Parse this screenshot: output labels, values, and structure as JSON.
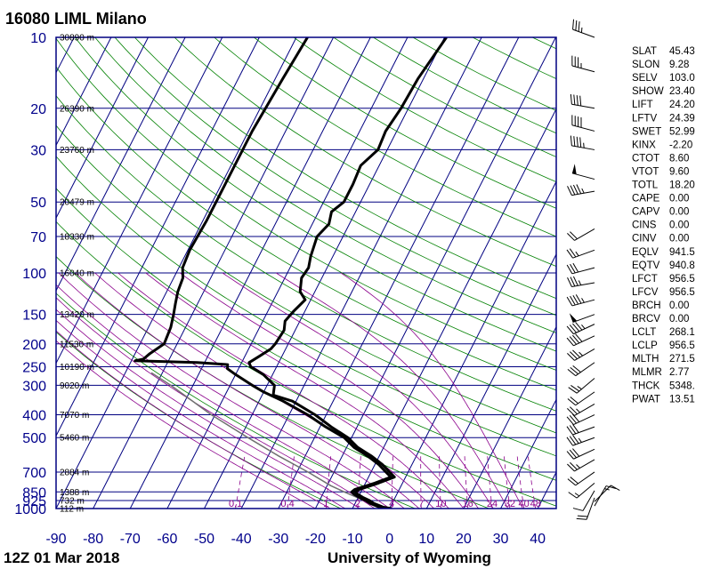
{
  "header": {
    "title": "16080 LIML Milano"
  },
  "footer": {
    "time": "12Z 01 Mar 2018",
    "source": "University of Wyoming"
  },
  "colors": {
    "frame": "#000080",
    "isotherm": "#000080",
    "dry_adiabat": "#008000",
    "moist_adiabat": "#8b008b",
    "mixing_ratio": "#8b008b",
    "profile": "#000000",
    "parcel": "#707070"
  },
  "chart_data": {
    "type": "skew-t log-p",
    "pressure_levels": [
      {
        "p": 10,
        "label": "10",
        "height": "30890 m"
      },
      {
        "p": 20,
        "label": "20",
        "height": "26390 m"
      },
      {
        "p": 30,
        "label": "30",
        "height": "23760 m"
      },
      {
        "p": 50,
        "label": "50",
        "height": "20479 m"
      },
      {
        "p": 70,
        "label": "70",
        "height": "18330 m"
      },
      {
        "p": 100,
        "label": "100",
        "height": "16040 m"
      },
      {
        "p": 150,
        "label": "150",
        "height": "13420 m"
      },
      {
        "p": 200,
        "label": "200",
        "height": "11530 m"
      },
      {
        "p": 250,
        "label": "250",
        "height": "10190 m"
      },
      {
        "p": 300,
        "label": "300",
        "height": "9020 m"
      },
      {
        "p": 400,
        "label": "400",
        "height": "7070 m"
      },
      {
        "p": 500,
        "label": "500",
        "height": "5460 m"
      },
      {
        "p": 700,
        "label": "700",
        "height": "2884 m"
      },
      {
        "p": 850,
        "label": "850",
        "height": "1388 m"
      },
      {
        "p": 925,
        "label": "925",
        "height": "732 m"
      },
      {
        "p": 1000,
        "label": "1000",
        "height": "112 m"
      }
    ],
    "temperature_ticks": [
      -90,
      -80,
      -70,
      -60,
      -50,
      -40,
      -30,
      -20,
      -10,
      0,
      10,
      20,
      30,
      40
    ],
    "x_range": [
      -90,
      45
    ],
    "p_range": [
      10,
      1000
    ],
    "mixing_ratio_labels": [
      "0.1",
      "0.4",
      "1",
      "2",
      "4",
      "7",
      "10",
      "16",
      "24",
      "32",
      "40",
      "48"
    ],
    "mixing_ratio_values": [
      0.1,
      0.4,
      1,
      2,
      4,
      7,
      10,
      16,
      24,
      32,
      40,
      48
    ],
    "dry_adiabats_theta_k": [
      260,
      280,
      300,
      320,
      340,
      360,
      380,
      400,
      420,
      440,
      460,
      480,
      500,
      520,
      560,
      600,
      640,
      680,
      720,
      760,
      800,
      860,
      920,
      980,
      1040,
      1100,
      1160
    ],
    "moist_adiabats_c": [
      -20,
      -16,
      -12,
      -8,
      -4,
      0,
      4,
      8,
      12,
      16,
      20,
      24,
      28,
      32,
      36
    ],
    "temperature_profile": [
      {
        "p": 1000,
        "t": 0.5
      },
      {
        "p": 985,
        "t": -2.0
      },
      {
        "p": 950,
        "t": -5.0
      },
      {
        "p": 925,
        "t": -6.5
      },
      {
        "p": 900,
        "t": -8.5
      },
      {
        "p": 870,
        "t": -10.5
      },
      {
        "p": 850,
        "t": -11.5
      },
      {
        "p": 830,
        "t": -10.8
      },
      {
        "p": 780,
        "t": -6.5
      },
      {
        "p": 735,
        "t": -3.0
      },
      {
        "p": 700,
        "t": -5.0
      },
      {
        "p": 650,
        "t": -8.0
      },
      {
        "p": 600,
        "t": -12.0
      },
      {
        "p": 550,
        "t": -17.0
      },
      {
        "p": 500,
        "t": -21.0
      },
      {
        "p": 450,
        "t": -27.0
      },
      {
        "p": 400,
        "t": -33.0
      },
      {
        "p": 350,
        "t": -41.0
      },
      {
        "p": 330,
        "t": -47.0
      },
      {
        "p": 300,
        "t": -48.0
      },
      {
        "p": 270,
        "t": -52.5
      },
      {
        "p": 250,
        "t": -57.0
      },
      {
        "p": 240,
        "t": -58.0
      },
      {
        "p": 225,
        "t": -56.0
      },
      {
        "p": 210,
        "t": -54.0
      },
      {
        "p": 200,
        "t": -53.5
      },
      {
        "p": 175,
        "t": -53.0
      },
      {
        "p": 160,
        "t": -54.0
      },
      {
        "p": 145,
        "t": -53.0
      },
      {
        "p": 130,
        "t": -51.5
      },
      {
        "p": 120,
        "t": -54.0
      },
      {
        "p": 105,
        "t": -55.5
      },
      {
        "p": 95,
        "t": -55.0
      },
      {
        "p": 85,
        "t": -56.0
      },
      {
        "p": 70,
        "t": -57.0
      },
      {
        "p": 62,
        "t": -55.5
      },
      {
        "p": 55,
        "t": -56.5
      },
      {
        "p": 50,
        "t": -54.5
      },
      {
        "p": 42,
        "t": -54.5
      },
      {
        "p": 35,
        "t": -55.0
      },
      {
        "p": 30,
        "t": -52.5
      },
      {
        "p": 25,
        "t": -53.0
      },
      {
        "p": 20,
        "t": -52.0
      },
      {
        "p": 15,
        "t": -51.5
      },
      {
        "p": 10,
        "t": -49.5
      }
    ],
    "dewpoint_profile": [
      {
        "p": 1000,
        "t": -0.5
      },
      {
        "p": 985,
        "t": -3.0
      },
      {
        "p": 950,
        "t": -6.0
      },
      {
        "p": 925,
        "t": -7.5
      },
      {
        "p": 900,
        "t": -9.5
      },
      {
        "p": 870,
        "t": -11.5
      },
      {
        "p": 850,
        "t": -12.5
      },
      {
        "p": 830,
        "t": -12.0
      },
      {
        "p": 780,
        "t": -7.5
      },
      {
        "p": 735,
        "t": -4.0
      },
      {
        "p": 700,
        "t": -6.0
      },
      {
        "p": 650,
        "t": -9.0
      },
      {
        "p": 600,
        "t": -13.0
      },
      {
        "p": 550,
        "t": -18.0
      },
      {
        "p": 500,
        "t": -22.0
      },
      {
        "p": 450,
        "t": -28.5
      },
      {
        "p": 400,
        "t": -35.0
      },
      {
        "p": 350,
        "t": -43.5
      },
      {
        "p": 320,
        "t": -50.0
      },
      {
        "p": 300,
        "t": -54.0
      },
      {
        "p": 270,
        "t": -60.0
      },
      {
        "p": 255,
        "t": -63.0
      },
      {
        "p": 245,
        "t": -63.5
      },
      {
        "p": 240,
        "t": -72.0
      },
      {
        "p": 236,
        "t": -89.0
      },
      {
        "p": 232,
        "t": -87.0
      },
      {
        "p": 220,
        "t": -86.0
      },
      {
        "p": 200,
        "t": -83.5
      },
      {
        "p": 170,
        "t": -84.0
      },
      {
        "p": 150,
        "t": -85.0
      },
      {
        "p": 135,
        "t": -86.0
      },
      {
        "p": 120,
        "t": -87.0
      },
      {
        "p": 105,
        "t": -87.5
      },
      {
        "p": 95,
        "t": -89.0
      },
      {
        "p": 80,
        "t": -89.5
      },
      {
        "p": 60,
        "t": -89.0
      },
      {
        "p": 40,
        "t": -89.0
      },
      {
        "p": 25,
        "t": -89.0
      },
      {
        "p": 15,
        "t": -88.0
      },
      {
        "p": 10,
        "t": -87.0
      }
    ],
    "parcel_profile": [
      {
        "p": 1000,
        "t": -1.0
      },
      {
        "p": 950,
        "t": -5.5
      },
      {
        "p": 900,
        "t": -10.0
      },
      {
        "p": 850,
        "t": -14.5
      },
      {
        "p": 800,
        "t": -19.0
      },
      {
        "p": 700,
        "t": -27.0
      },
      {
        "p": 600,
        "t": -37.0
      },
      {
        "p": 500,
        "t": -48.0
      },
      {
        "p": 400,
        "t": -61.0
      },
      {
        "p": 300,
        "t": -76.0
      },
      {
        "p": 265,
        "t": -83.0
      }
    ],
    "wind_barbs": [
      {
        "p": 10,
        "dir": 290,
        "kt": 35
      },
      {
        "p": 14,
        "dir": 285,
        "kt": 35
      },
      {
        "p": 20,
        "dir": 280,
        "kt": 40
      },
      {
        "p": 25,
        "dir": 285,
        "kt": 40
      },
      {
        "p": 30,
        "dir": 280,
        "kt": 45
      },
      {
        "p": 40,
        "dir": 285,
        "kt": 50
      },
      {
        "p": 45,
        "dir": 260,
        "kt": 45
      },
      {
        "p": 65,
        "dir": 240,
        "kt": 20
      },
      {
        "p": 80,
        "dir": 250,
        "kt": 25
      },
      {
        "p": 95,
        "dir": 255,
        "kt": 30
      },
      {
        "p": 110,
        "dir": 260,
        "kt": 35
      },
      {
        "p": 130,
        "dir": 255,
        "kt": 45
      },
      {
        "p": 150,
        "dir": 250,
        "kt": 50
      },
      {
        "p": 165,
        "dir": 245,
        "kt": 45
      },
      {
        "p": 185,
        "dir": 245,
        "kt": 40
      },
      {
        "p": 210,
        "dir": 240,
        "kt": 35
      },
      {
        "p": 240,
        "dir": 235,
        "kt": 30
      },
      {
        "p": 280,
        "dir": 230,
        "kt": 25
      },
      {
        "p": 320,
        "dir": 235,
        "kt": 20
      },
      {
        "p": 360,
        "dir": 240,
        "kt": 25
      },
      {
        "p": 400,
        "dir": 245,
        "kt": 30
      },
      {
        "p": 450,
        "dir": 250,
        "kt": 30
      },
      {
        "p": 500,
        "dir": 250,
        "kt": 35
      },
      {
        "p": 560,
        "dir": 245,
        "kt": 30
      },
      {
        "p": 620,
        "dir": 240,
        "kt": 25
      },
      {
        "p": 700,
        "dir": 235,
        "kt": 20
      },
      {
        "p": 780,
        "dir": 230,
        "kt": 15
      },
      {
        "p": 840,
        "dir": 210,
        "kt": 10
      },
      {
        "p": 900,
        "dir": 200,
        "kt": 20
      },
      {
        "p": 935,
        "dir": 45,
        "kt": 10
      },
      {
        "p": 975,
        "dir": 30,
        "kt": 15
      }
    ]
  },
  "indices": [
    {
      "label": "SLAT",
      "value": "45.43"
    },
    {
      "label": "SLON",
      "value": "9.28"
    },
    {
      "label": "SELV",
      "value": "103.0"
    },
    {
      "label": "SHOW",
      "value": "23.40"
    },
    {
      "label": "LIFT",
      "value": "24.20"
    },
    {
      "label": "LFTV",
      "value": "24.39"
    },
    {
      "label": "SWET",
      "value": "52.99"
    },
    {
      "label": "KINX",
      "value": "-2.20"
    },
    {
      "label": "CTOT",
      "value": "8.60"
    },
    {
      "label": "VTOT",
      "value": "9.60"
    },
    {
      "label": "TOTL",
      "value": "18.20"
    },
    {
      "label": "CAPE",
      "value": "0.00"
    },
    {
      "label": "CAPV",
      "value": "0.00"
    },
    {
      "label": "CINS",
      "value": "0.00"
    },
    {
      "label": "CINV",
      "value": "0.00"
    },
    {
      "label": "EQLV",
      "value": "941.5"
    },
    {
      "label": "EQTV",
      "value": "940.8"
    },
    {
      "label": "LFCT",
      "value": "956.5"
    },
    {
      "label": "LFCV",
      "value": "956.5"
    },
    {
      "label": "BRCH",
      "value": "0.00"
    },
    {
      "label": "BRCV",
      "value": "0.00"
    },
    {
      "label": "LCLT",
      "value": "268.1"
    },
    {
      "label": "LCLP",
      "value": "956.5"
    },
    {
      "label": "MLTH",
      "value": "271.5"
    },
    {
      "label": "MLMR",
      "value": "2.77"
    },
    {
      "label": "THCK",
      "value": "5348."
    },
    {
      "label": "PWAT",
      "value": "13.51"
    }
  ]
}
